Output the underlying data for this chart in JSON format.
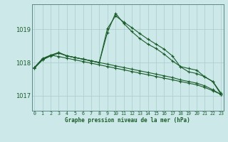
{
  "background_color": "#cce8e8",
  "line_color": "#1a5c2a",
  "grid_color": "#aacccc",
  "title": "Graphe pression niveau de la mer (hPa)",
  "xlim": [
    -0.3,
    23.3
  ],
  "ylim": [
    1016.55,
    1019.75
  ],
  "yticks": [
    1017,
    1018,
    1019
  ],
  "xticks": [
    0,
    1,
    2,
    3,
    4,
    5,
    6,
    7,
    8,
    9,
    10,
    11,
    12,
    13,
    14,
    15,
    16,
    17,
    18,
    19,
    20,
    21,
    22,
    23
  ],
  "line1_y": [
    1017.85,
    1018.12,
    1018.22,
    1018.18,
    1018.13,
    1018.08,
    1018.03,
    1017.98,
    1017.93,
    1017.88,
    1017.83,
    1017.78,
    1017.73,
    1017.68,
    1017.63,
    1017.58,
    1017.53,
    1017.48,
    1017.43,
    1017.38,
    1017.33,
    1017.25,
    1017.15,
    1017.04
  ],
  "line2_y": [
    1017.85,
    1018.1,
    1018.22,
    1018.3,
    1018.2,
    1018.15,
    1018.1,
    1018.05,
    1018.0,
    1017.95,
    1017.9,
    1017.85,
    1017.8,
    1017.75,
    1017.7,
    1017.65,
    1017.6,
    1017.55,
    1017.48,
    1017.43,
    1017.38,
    1017.3,
    1017.18,
    1017.04
  ],
  "line3_y": [
    1017.83,
    1018.08,
    1018.2,
    1018.3,
    1018.2,
    1018.15,
    1018.1,
    1018.05,
    1018.0,
    1019.02,
    1019.4,
    1019.22,
    1019.05,
    1018.87,
    1018.7,
    1018.55,
    1018.4,
    1018.2,
    1017.87,
    1017.72,
    1017.67,
    1017.57,
    1017.42,
    1017.04
  ],
  "line4_y": [
    1017.83,
    1018.08,
    1018.2,
    1018.28,
    1018.2,
    1018.15,
    1018.1,
    1018.05,
    1018.0,
    1018.9,
    1019.48,
    1019.18,
    1018.93,
    1018.72,
    1018.55,
    1018.42,
    1018.25,
    1018.05,
    1017.88,
    1017.82,
    1017.77,
    1017.57,
    1017.43,
    1017.08
  ]
}
